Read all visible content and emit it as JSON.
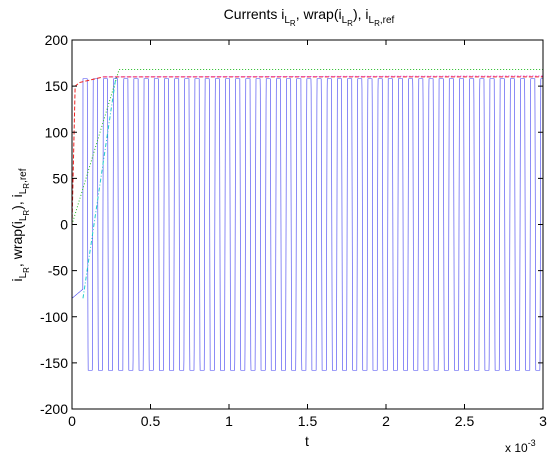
{
  "chart_data": {
    "type": "line",
    "title": {
      "prefix": "Currents i",
      "sub1": "L",
      "subsub1": "R",
      "mid1": ", wrap(i",
      "sub2": "L",
      "subsub2": "R",
      "mid2": "), i",
      "sub3": "L",
      "subsub3": "R",
      "tail": ",ref"
    },
    "xlabel": "t",
    "ylabel": {
      "p1": "i",
      "s1": "L",
      "ss1": "R",
      "p2": ", wrap(i",
      "s2": "L",
      "ss2": "R",
      "p3": "), i",
      "s3": "L",
      "ss3": "R",
      "p4": ",ref"
    },
    "x_exponent": {
      "base": "x 10",
      "exp": "-3"
    },
    "xlim": [
      0,
      3
    ],
    "ylim": [
      -200,
      200
    ],
    "xticks": [
      0,
      0.5,
      1,
      1.5,
      2,
      2.5,
      3
    ],
    "xtick_labels": [
      "0",
      "0.5",
      "1",
      "1.5",
      "2",
      "2.5",
      "3"
    ],
    "yticks": [
      -200,
      -150,
      -100,
      -50,
      0,
      50,
      100,
      150,
      200
    ],
    "ytick_labels": [
      "-200",
      "-150",
      "-100",
      "-50",
      "0",
      "50",
      "100",
      "150",
      "200"
    ],
    "grid": false,
    "series": [
      {
        "style": "blue-thin",
        "color": "#3f3ff0",
        "kind": "wrapped-oscillation",
        "amplitude": 160,
        "period": 0.0648,
        "start": 0.07,
        "x_scale": 0.001
      },
      {
        "style": "green-dotted",
        "color": "#22bb22",
        "x": [
          0,
          0.3,
          3
        ],
        "y": [
          0,
          168,
          168
        ]
      },
      {
        "style": "red-dashed",
        "color": "#ee2222",
        "x": [
          0,
          0.02,
          0.05,
          0.1,
          0.15,
          0.2,
          0.3,
          3
        ],
        "y": [
          0,
          150,
          154,
          156,
          158,
          160,
          160,
          160
        ]
      },
      {
        "style": "cyan-dashdot",
        "color": "#22cccc",
        "x": [
          0.07,
          0.28
        ],
        "y": [
          -80,
          160
        ]
      },
      {
        "style": "magenta-dotted",
        "color": "#dd22dd",
        "x": [
          0.2,
          3
        ],
        "y": [
          160,
          161
        ]
      }
    ]
  }
}
